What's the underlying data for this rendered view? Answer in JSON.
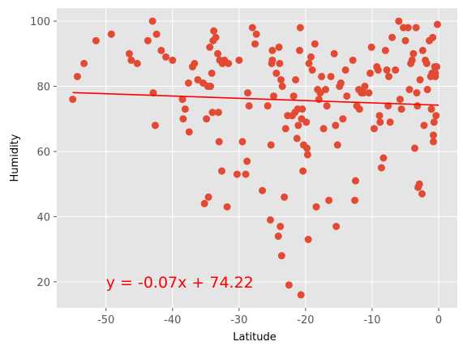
{
  "chart_data": {
    "type": "scatter",
    "title": "",
    "xlabel": "Latitude",
    "ylabel": "Humidity",
    "xlim": [
      -57.4,
      2.8
    ],
    "ylim": [
      12,
      104
    ],
    "xticks": [
      -50,
      -40,
      -30,
      -20,
      -10,
      0
    ],
    "yticks": [
      20,
      40,
      60,
      80,
      100
    ],
    "grid": true,
    "style": {
      "background": "#E5E5E5",
      "grid_color": "#FFFFFF",
      "point_color": "#E24A33",
      "line_color": "#FF0000",
      "annotation_color": "#FF0000"
    },
    "regression": {
      "slope": -0.07,
      "intercept": 74.22,
      "x_range": [
        -55,
        0
      ],
      "equation_label": "y = -0.07x + 74.22",
      "label_x": -50,
      "label_y": 20
    },
    "points": [
      [
        -55,
        76
      ],
      [
        -54.3,
        83
      ],
      [
        -53.3,
        87
      ],
      [
        -51.5,
        94
      ],
      [
        -49.2,
        96
      ],
      [
        -46.5,
        90
      ],
      [
        -46.2,
        88
      ],
      [
        -45.3,
        87
      ],
      [
        -43.7,
        94
      ],
      [
        -43,
        100
      ],
      [
        -42.9,
        78
      ],
      [
        -42.6,
        68
      ],
      [
        -42.4,
        96
      ],
      [
        -41.7,
        91
      ],
      [
        -41,
        89
      ],
      [
        -40,
        88
      ],
      [
        -38.5,
        76
      ],
      [
        -38.4,
        70
      ],
      [
        -38.1,
        73
      ],
      [
        -37.6,
        81
      ],
      [
        -37.5,
        66
      ],
      [
        -37,
        86
      ],
      [
        -36.7,
        87
      ],
      [
        -36.2,
        82
      ],
      [
        -35.2,
        44
      ],
      [
        -35.4,
        81
      ],
      [
        -34.9,
        70
      ],
      [
        -34.7,
        80
      ],
      [
        -34.6,
        46
      ],
      [
        -34.4,
        92
      ],
      [
        -34.3,
        80
      ],
      [
        -34.1,
        84
      ],
      [
        -34,
        72
      ],
      [
        -33.9,
        94
      ],
      [
        -33.8,
        97
      ],
      [
        -33.5,
        95
      ],
      [
        -33.1,
        72
      ],
      [
        -33,
        63
      ],
      [
        -33.2,
        90
      ],
      [
        -32.9,
        88
      ],
      [
        -32.6,
        54
      ],
      [
        -32.5,
        87
      ],
      [
        -32.2,
        88
      ],
      [
        -31.8,
        43
      ],
      [
        -31.6,
        87
      ],
      [
        -30.3,
        53
      ],
      [
        -30,
        88
      ],
      [
        -29.5,
        63
      ],
      [
        -29,
        53
      ],
      [
        -28.8,
        57
      ],
      [
        -28.5,
        74
      ],
      [
        -28.7,
        78
      ],
      [
        -28,
        98
      ],
      [
        -27.6,
        93
      ],
      [
        -27.4,
        96
      ],
      [
        -26.5,
        48
      ],
      [
        -25.7,
        74
      ],
      [
        -25.3,
        39
      ],
      [
        -25.2,
        62
      ],
      [
        -25.1,
        87
      ],
      [
        -25,
        88
      ],
      [
        -25,
        91
      ],
      [
        -24.8,
        77
      ],
      [
        -24.4,
        84
      ],
      [
        -24.1,
        34
      ],
      [
        -24,
        92
      ],
      [
        -23.9,
        87
      ],
      [
        -23.8,
        37
      ],
      [
        -23.7,
        82
      ],
      [
        -23.6,
        28
      ],
      [
        -23.5,
        80
      ],
      [
        -23.2,
        46
      ],
      [
        -23,
        67
      ],
      [
        -22.7,
        71
      ],
      [
        -22.5,
        19
      ],
      [
        -22,
        71
      ],
      [
        -21.8,
        77
      ],
      [
        -21.6,
        72
      ],
      [
        -21.5,
        82
      ],
      [
        -21.3,
        64
      ],
      [
        -21.2,
        73
      ],
      [
        -21.1,
        68
      ],
      [
        -20.9,
        91
      ],
      [
        -20.8,
        98
      ],
      [
        -20.7,
        16
      ],
      [
        -20.6,
        70
      ],
      [
        -20.5,
        73
      ],
      [
        -20.4,
        54
      ],
      [
        -20.3,
        62
      ],
      [
        -19.9,
        69
      ],
      [
        -19.8,
        61
      ],
      [
        -19.7,
        59
      ],
      [
        -19.6,
        33
      ],
      [
        -19.5,
        87
      ],
      [
        -19.2,
        89
      ],
      [
        -19,
        85
      ],
      [
        -18.6,
        93
      ],
      [
        -18.4,
        43
      ],
      [
        -18.2,
        79
      ],
      [
        -18,
        76
      ],
      [
        -17.8,
        78
      ],
      [
        -17.6,
        83
      ],
      [
        -17.3,
        67
      ],
      [
        -17,
        79
      ],
      [
        -16.8,
        74
      ],
      [
        -16.5,
        45
      ],
      [
        -16.2,
        83
      ],
      [
        -15.7,
        90
      ],
      [
        -15.5,
        68
      ],
      [
        -15.4,
        37
      ],
      [
        -15.2,
        62
      ],
      [
        -14.9,
        80
      ],
      [
        -14.7,
        81
      ],
      [
        -14.4,
        70
      ],
      [
        -14,
        85
      ],
      [
        -13.8,
        77
      ],
      [
        -12.9,
        88
      ],
      [
        -12.6,
        45
      ],
      [
        -12.5,
        51
      ],
      [
        -12.3,
        74
      ],
      [
        -12,
        79
      ],
      [
        -11.9,
        73
      ],
      [
        -11.6,
        78
      ],
      [
        -11.3,
        78
      ],
      [
        -11.1,
        80
      ],
      [
        -10.5,
        78
      ],
      [
        -10.3,
        84
      ],
      [
        -10.1,
        92
      ],
      [
        -9.7,
        67
      ],
      [
        -9.3,
        86
      ],
      [
        -9.1,
        85
      ],
      [
        -8.9,
        71
      ],
      [
        -8.8,
        69
      ],
      [
        -8.6,
        55
      ],
      [
        -8.3,
        58
      ],
      [
        -8,
        91
      ],
      [
        -7.8,
        85
      ],
      [
        -7.6,
        74
      ],
      [
        -7.5,
        83
      ],
      [
        -7.3,
        69
      ],
      [
        -7,
        95
      ],
      [
        -6.5,
        85
      ],
      [
        -6,
        100
      ],
      [
        -5.8,
        76
      ],
      [
        -5.6,
        73
      ],
      [
        -5.3,
        98
      ],
      [
        -5,
        94
      ],
      [
        -4.6,
        98
      ],
      [
        -4.4,
        79
      ],
      [
        -4.2,
        87
      ],
      [
        -4,
        88
      ],
      [
        -3.8,
        90
      ],
      [
        -3.6,
        61
      ],
      [
        -3.4,
        98
      ],
      [
        -3.3,
        78
      ],
      [
        -3.2,
        74
      ],
      [
        -3.1,
        49
      ],
      [
        -2.9,
        50
      ],
      [
        -2.8,
        82
      ],
      [
        -2.5,
        47
      ],
      [
        -2.4,
        91
      ],
      [
        -2.2,
        68
      ],
      [
        -2,
        88
      ],
      [
        -1.8,
        87
      ],
      [
        -1.7,
        79
      ],
      [
        -1.4,
        94
      ],
      [
        -1.2,
        83
      ],
      [
        -1.1,
        73
      ],
      [
        -0.9,
        95
      ],
      [
        -0.8,
        65
      ],
      [
        -0.8,
        63
      ],
      [
        -0.7,
        69
      ],
      [
        -0.6,
        86
      ],
      [
        -0.5,
        84
      ],
      [
        -0.5,
        83
      ],
      [
        -0.4,
        71
      ],
      [
        -0.3,
        86
      ],
      [
        -0.2,
        99
      ],
      [
        -1.0,
        84
      ]
    ]
  }
}
